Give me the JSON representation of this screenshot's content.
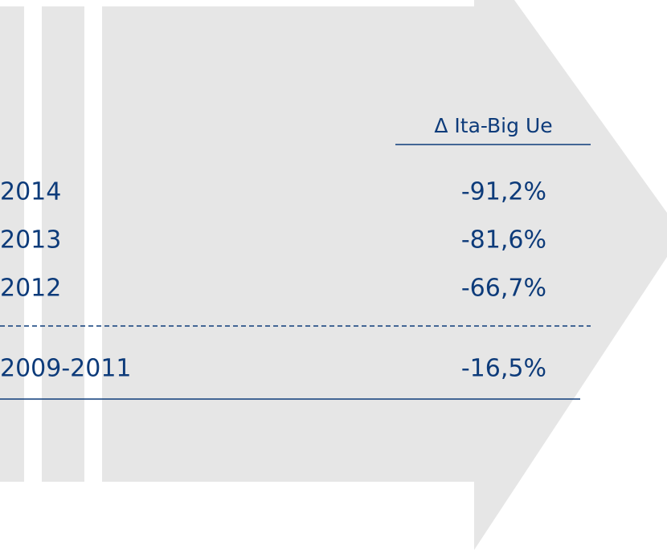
{
  "table": {
    "header": "Δ Ita-Big Ue",
    "rows": [
      [
        "2014",
        "-91,2%"
      ],
      [
        "2013",
        "-81,6%"
      ],
      [
        "2012",
        "-66,7%"
      ],
      [
        "2009-2011",
        "-16,5%"
      ]
    ]
  }
}
